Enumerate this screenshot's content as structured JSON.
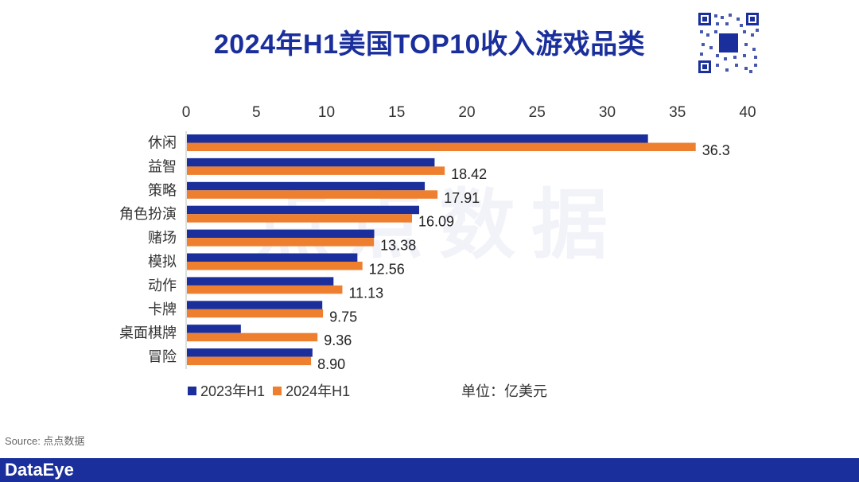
{
  "title": "2024年H1美国TOP10收入游戏品类",
  "unit_label": "单位：亿美元",
  "source": "Source: 点点数据",
  "brand": "DataEye",
  "watermark": "点点数据",
  "colors": {
    "primary": "#1a2f9c",
    "series_2023": "#1a2f9c",
    "series_2024": "#ee7f2f"
  },
  "chart_data": {
    "type": "bar",
    "orientation": "horizontal",
    "categories": [
      "休闲",
      "益智",
      "策略",
      "角色扮演",
      "赌场",
      "模拟",
      "动作",
      "卡牌",
      "桌面棋牌",
      "冒险"
    ],
    "series": [
      {
        "name": "2023年H1",
        "values": [
          32.9,
          17.7,
          17.0,
          16.6,
          13.4,
          12.2,
          10.5,
          9.7,
          3.9,
          9.0
        ],
        "data_labels": false
      },
      {
        "name": "2024年H1",
        "values": [
          36.3,
          18.42,
          17.91,
          16.09,
          13.38,
          12.56,
          11.13,
          9.75,
          9.36,
          8.9
        ],
        "labels": [
          "36.3",
          "18.42",
          "17.91",
          "16.09",
          "13.38",
          "12.56",
          "11.13",
          "9.75",
          "9.36",
          "8.90"
        ],
        "data_labels": true
      }
    ],
    "xlim": [
      0,
      40
    ],
    "xticks": [
      "0",
      "5",
      "10",
      "15",
      "20",
      "25",
      "30",
      "35",
      "40"
    ],
    "axis_position": "top",
    "legend": "bottom-left",
    "grid": false
  }
}
